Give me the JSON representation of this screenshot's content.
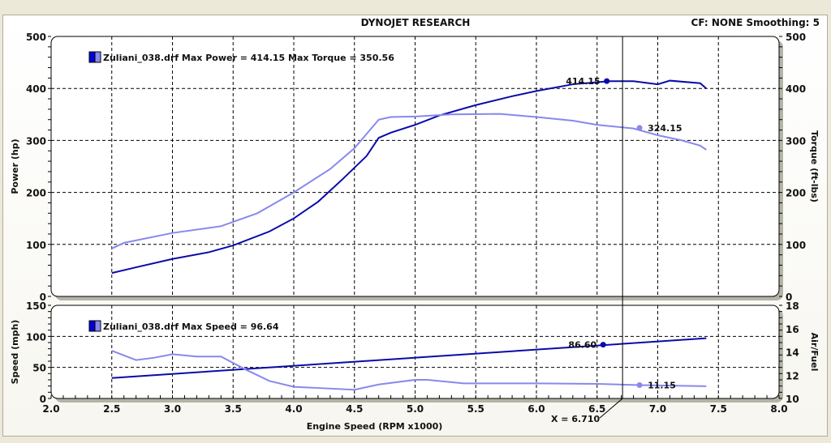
{
  "header": {
    "title": "DYNOJET RESEARCH",
    "status": "CF: NONE  Smoothing: 5"
  },
  "colors": {
    "power": "#0a0aa8",
    "torque": "#8888ee",
    "speed": "#0a0aa8",
    "afr": "#8888ee",
    "plot_bg": "#ffffff",
    "window_bg": "#ece9d8"
  },
  "chart_data": [
    {
      "type": "line",
      "xlabel": "",
      "ylabel": "Power (hp)",
      "y2label": "Torque (ft-lbs)",
      "xlim": [
        2.0,
        8.0
      ],
      "ylim": [
        0,
        500
      ],
      "y2lim": [
        0,
        500
      ],
      "yticks": [
        "0",
        "100",
        "200",
        "300",
        "400",
        "500"
      ],
      "y2ticks": [
        "0",
        "100",
        "200",
        "300",
        "400",
        "500"
      ],
      "grid": true,
      "legend": "Zuliani_038.drf Max Power = 414.15 Max Torque = 350.56",
      "legend_placement": "top-left",
      "series": [
        {
          "key": "power",
          "x": [
            2.5,
            2.7,
            3.0,
            3.3,
            3.5,
            3.8,
            4.0,
            4.2,
            4.4,
            4.6,
            4.7,
            4.8,
            5.0,
            5.2,
            5.5,
            5.8,
            6.0,
            6.3,
            6.6,
            6.8,
            7.0,
            7.1,
            7.35,
            7.4
          ],
          "y": [
            45,
            56,
            72,
            85,
            98,
            125,
            150,
            182,
            225,
            270,
            305,
            315,
            330,
            348,
            368,
            385,
            395,
            408,
            414,
            414,
            408,
            415,
            410,
            400
          ]
        },
        {
          "key": "torque",
          "x": [
            2.5,
            2.6,
            3.0,
            3.4,
            3.7,
            4.0,
            4.3,
            4.5,
            4.7,
            4.8,
            5.0,
            5.3,
            5.7,
            6.0,
            6.3,
            6.5,
            6.8,
            7.0,
            7.2,
            7.35,
            7.4
          ],
          "y": [
            92,
            103,
            122,
            135,
            160,
            200,
            245,
            285,
            340,
            345,
            346,
            350,
            351,
            345,
            338,
            330,
            323,
            310,
            300,
            290,
            282
          ]
        }
      ],
      "annotations": [
        {
          "series": "power",
          "x": 6.58,
          "y": 414.15,
          "label": "414.15"
        },
        {
          "series": "torque",
          "x": 6.85,
          "y": 324.15,
          "label": "324.15"
        }
      ]
    },
    {
      "type": "line",
      "xlabel": "Engine Speed (RPM x1000)",
      "ylabel": "Speed (mph)",
      "y2label": "Air/Fuel",
      "xlim": [
        2.0,
        8.0
      ],
      "ylim": [
        0,
        150
      ],
      "y2lim": [
        10,
        18
      ],
      "xticks": [
        "2.0",
        "2.5",
        "3.0",
        "3.5",
        "4.0",
        "4.5",
        "5.0",
        "5.5",
        "6.0",
        "6.5",
        "7.0",
        "7.5",
        "8.0"
      ],
      "yticks": [
        "0",
        "50",
        "100",
        "150"
      ],
      "y2ticks": [
        "10",
        "12",
        "14",
        "16",
        "18"
      ],
      "grid": true,
      "legend": "Zuliani_038.drf Max Speed = 96.64",
      "legend_placement": "top-left",
      "series": [
        {
          "key": "speed",
          "x": [
            2.5,
            7.4
          ],
          "y": [
            33,
            97
          ]
        },
        {
          "key": "afr",
          "axis": "y2",
          "x": [
            2.5,
            2.7,
            2.85,
            3.0,
            3.2,
            3.4,
            3.6,
            3.8,
            4.0,
            4.2,
            4.5,
            4.7,
            5.0,
            5.1,
            5.4,
            6.0,
            6.5,
            6.85,
            7.4
          ],
          "y": [
            14.1,
            13.3,
            13.5,
            13.8,
            13.6,
            13.6,
            12.5,
            11.5,
            11.0,
            10.9,
            10.75,
            11.2,
            11.6,
            11.6,
            11.3,
            11.3,
            11.25,
            11.15,
            11.05
          ]
        }
      ],
      "annotations": [
        {
          "series": "speed",
          "x": 6.55,
          "y": 86.6,
          "label": "86.60"
        },
        {
          "series": "afr",
          "x": 6.85,
          "y": 11.15,
          "label": "11.15"
        }
      ],
      "cursor": {
        "x": 6.71,
        "label": "X = 6.710"
      }
    }
  ]
}
